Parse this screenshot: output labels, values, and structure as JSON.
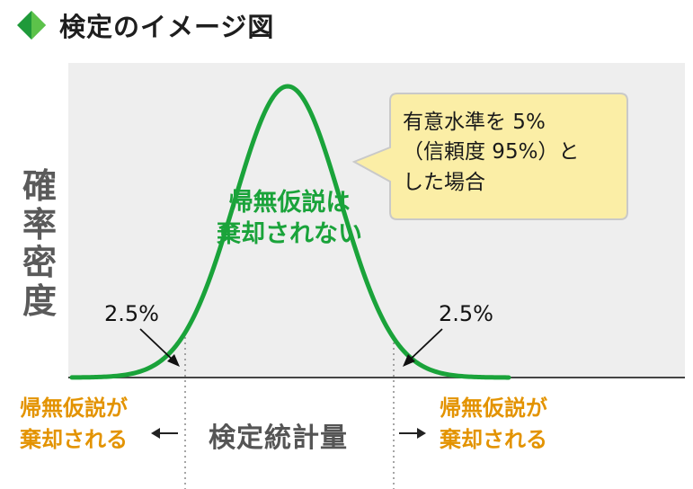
{
  "title": "検定のイメージ図",
  "icon": "green-diamond-icon",
  "y_axis_label": "確\n率\n密\n度",
  "x_axis_label": "検定統計量",
  "curve_label": "帰無仮説は\n棄却されない",
  "tail_percent_left": "2.5%",
  "tail_percent_right": "2.5%",
  "callout": "有意水準を 5%\n（信頼度 95%）と\nした場合",
  "rejection_label_left": "帰無仮説が\n棄却される",
  "rejection_label_right": "帰無仮説が\n棄却される",
  "colors": {
    "curve": "#1aa33a",
    "plot_background": "#eeeeee",
    "callout_fill": "#fbeea6",
    "callout_border": "#c9c9c9",
    "rejection_text": "#e39300",
    "axis_label": "#555555"
  }
}
